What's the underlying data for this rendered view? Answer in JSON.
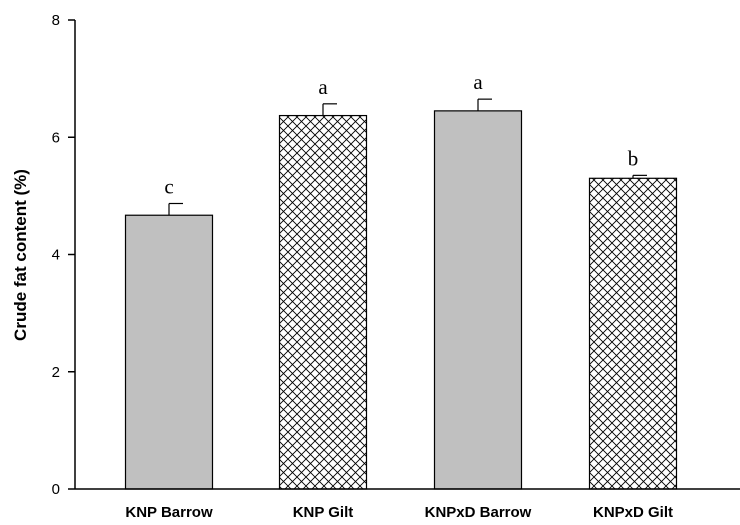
{
  "chart_data": {
    "type": "bar",
    "title": "",
    "xlabel": "",
    "ylabel": "Crude fat content (%)",
    "ylim": [
      0,
      8
    ],
    "yticks": [
      0,
      2,
      4,
      6,
      8
    ],
    "grid": false,
    "categories": [
      "KNP Barrow",
      "KNP Gilt",
      "KNPxD Barrow",
      "KNPxD Gilt"
    ],
    "values": [
      4.67,
      6.37,
      6.45,
      5.3
    ],
    "errors": [
      0.2,
      0.2,
      0.2,
      0.05
    ],
    "significance_letters": [
      "c",
      "a",
      "a",
      "b"
    ],
    "fills": [
      "solid-gray",
      "crosshatch",
      "solid-gray",
      "crosshatch"
    ],
    "colors": {
      "solid": "#c0c0c0",
      "hatch_line": "#000000",
      "hatch_background": "#ffffff",
      "axis": "#000000"
    }
  }
}
